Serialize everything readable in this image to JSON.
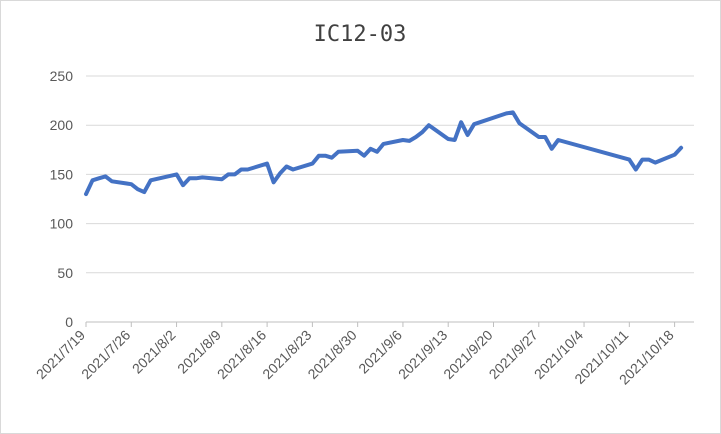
{
  "chart_data": {
    "type": "line",
    "title": "IC12-03",
    "xlabel": "",
    "ylabel": "",
    "ylim": [
      0,
      250
    ],
    "yticks": [
      0,
      50,
      100,
      150,
      200,
      250
    ],
    "xlim": [
      "2021-07-19",
      "2021-10-21"
    ],
    "xtick_labels": [
      "2021/7/19",
      "2021/7/26",
      "2021/8/2",
      "2021/8/9",
      "2021/8/16",
      "2021/8/23",
      "2021/8/30",
      "2021/9/6",
      "2021/9/13",
      "2021/9/20",
      "2021/9/27",
      "2021/10/4",
      "2021/10/11",
      "2021/10/18"
    ],
    "grid": true,
    "legend": "none",
    "color": "#4472c4",
    "series": [
      {
        "x": [
          "2021-07-19",
          "2021-07-20",
          "2021-07-21",
          "2021-07-22",
          "2021-07-23",
          "2021-07-26",
          "2021-07-27",
          "2021-07-28",
          "2021-07-29",
          "2021-08-02",
          "2021-08-03",
          "2021-08-04",
          "2021-08-05",
          "2021-08-06",
          "2021-08-09",
          "2021-08-10",
          "2021-08-11",
          "2021-08-12",
          "2021-08-13",
          "2021-08-16",
          "2021-08-17",
          "2021-08-18",
          "2021-08-19",
          "2021-08-20",
          "2021-08-23",
          "2021-08-24",
          "2021-08-25",
          "2021-08-26",
          "2021-08-27",
          "2021-08-30",
          "2021-08-31",
          "2021-09-01",
          "2021-09-02",
          "2021-09-03",
          "2021-09-06",
          "2021-09-07",
          "2021-09-08",
          "2021-09-09",
          "2021-09-10",
          "2021-09-13",
          "2021-09-14",
          "2021-09-15",
          "2021-09-16",
          "2021-09-17",
          "2021-09-22",
          "2021-09-23",
          "2021-09-24",
          "2021-09-27",
          "2021-09-28",
          "2021-09-29",
          "2021-09-30",
          "2021-10-11",
          "2021-10-12",
          "2021-10-13",
          "2021-10-14",
          "2021-10-15",
          "2021-10-18",
          "2021-10-19"
        ],
        "values": [
          130,
          144,
          146,
          148,
          143,
          140,
          135,
          132,
          144,
          150,
          139,
          146,
          146,
          147,
          145,
          150,
          150,
          155,
          155,
          161,
          142,
          151,
          158,
          155,
          161,
          169,
          169,
          167,
          173,
          174,
          169,
          176,
          173,
          181,
          185,
          184,
          188,
          193,
          200,
          186,
          185,
          203,
          190,
          201,
          212,
          213,
          202,
          188,
          188,
          176,
          185,
          165,
          155,
          165,
          165,
          162,
          170,
          177
        ]
      }
    ]
  }
}
